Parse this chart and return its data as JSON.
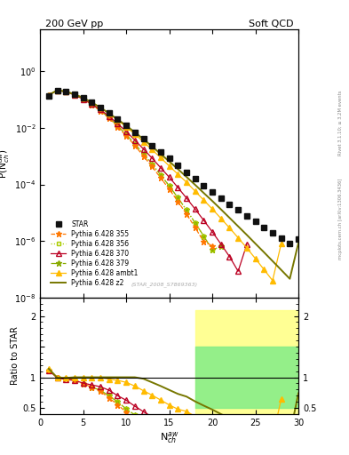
{
  "title_left": "200 GeV pp",
  "title_right": "Soft QCD",
  "ylabel_main": "P(N$^{aw}_{ch}$)",
  "ylabel_ratio": "Ratio to STAR",
  "xlabel": "N$^{aw}_{ch}$",
  "watermark": "(STAR_2008_S7869363)",
  "right_label_top": "Rivet 3.1.10; ≥ 3.2M events",
  "right_label_bot": "mcplots.cern.ch [arXiv:1306.3436]",
  "ylim_main": [
    1e-08,
    30
  ],
  "ylim_ratio": [
    0.4,
    2.3
  ],
  "xmin": 0,
  "xmax": 30,
  "star_x": [
    1,
    2,
    3,
    4,
    5,
    6,
    7,
    8,
    9,
    10,
    11,
    12,
    13,
    14,
    15,
    16,
    17,
    18,
    19,
    20,
    21,
    22,
    23,
    24,
    25,
    26,
    27,
    28,
    29,
    30
  ],
  "star_y": [
    0.13,
    0.215,
    0.195,
    0.155,
    0.115,
    0.08,
    0.052,
    0.033,
    0.02,
    0.012,
    0.007,
    0.0041,
    0.0024,
    0.0014,
    0.00082,
    0.00048,
    0.00027,
    0.00016,
    9.3e-05,
    5.5e-05,
    3.3e-05,
    2e-05,
    1.25e-05,
    7.8e-06,
    4.9e-06,
    3.1e-06,
    1.95e-06,
    1.25e-06,
    8e-07,
    1.15e-06
  ],
  "py355_x": [
    1,
    2,
    3,
    4,
    5,
    6,
    7,
    8,
    9,
    10,
    11,
    12,
    13,
    14,
    15,
    16,
    17,
    18,
    19,
    20
  ],
  "py355_y": [
    0.145,
    0.215,
    0.192,
    0.148,
    0.103,
    0.067,
    0.04,
    0.022,
    0.011,
    0.0052,
    0.0024,
    0.001,
    0.00043,
    0.00017,
    6.8e-05,
    2.5e-05,
    9e-06,
    3e-06,
    9.5e-07,
    6.8e-07
  ],
  "py356_x": [
    1,
    2,
    3,
    4,
    5,
    6,
    7,
    8,
    9,
    10,
    11,
    12,
    13,
    14,
    15,
    16,
    17,
    18,
    19,
    20,
    21
  ],
  "py356_y": [
    0.145,
    0.215,
    0.192,
    0.148,
    0.103,
    0.067,
    0.041,
    0.023,
    0.012,
    0.0058,
    0.0027,
    0.0012,
    0.00052,
    0.00022,
    8.8e-05,
    3.4e-05,
    1.25e-05,
    4.4e-06,
    1.5e-06,
    4.8e-07,
    6.5e-07
  ],
  "py370_x": [
    1,
    2,
    3,
    4,
    5,
    6,
    7,
    8,
    9,
    10,
    11,
    12,
    13,
    14,
    15,
    16,
    17,
    18,
    19,
    20,
    21,
    22,
    23,
    24
  ],
  "py370_y": [
    0.145,
    0.212,
    0.188,
    0.147,
    0.104,
    0.07,
    0.044,
    0.026,
    0.014,
    0.0075,
    0.0037,
    0.0018,
    0.00085,
    0.00039,
    0.00018,
    7.8e-05,
    3.3e-05,
    1.35e-05,
    5.4e-06,
    2.1e-06,
    7.8e-07,
    2.8e-07,
    8.5e-08,
    7.5e-07
  ],
  "py379_x": [
    1,
    2,
    3,
    4,
    5,
    6,
    7,
    8,
    9,
    10,
    11,
    12,
    13,
    14,
    15,
    16,
    17,
    18,
    19,
    20,
    21
  ],
  "py379_y": [
    0.145,
    0.215,
    0.192,
    0.148,
    0.103,
    0.067,
    0.041,
    0.023,
    0.012,
    0.0058,
    0.0027,
    0.0012,
    0.00052,
    0.00022,
    8.8e-05,
    3.4e-05,
    1.25e-05,
    4.4e-06,
    1.5e-06,
    4.8e-07,
    6.5e-07
  ],
  "pyambt1_x": [
    1,
    2,
    3,
    4,
    5,
    6,
    7,
    8,
    9,
    10,
    11,
    12,
    13,
    14,
    15,
    16,
    17,
    18,
    19,
    20,
    21,
    22,
    23,
    24,
    25,
    26,
    27,
    28
  ],
  "pyambt1_y": [
    0.148,
    0.213,
    0.193,
    0.155,
    0.114,
    0.079,
    0.052,
    0.032,
    0.019,
    0.011,
    0.006,
    0.0032,
    0.0017,
    0.00088,
    0.00045,
    0.00023,
    0.00012,
    5.8e-05,
    2.8e-05,
    1.35e-05,
    6.3e-06,
    2.9e-06,
    1.3e-06,
    5.7e-07,
    2.4e-07,
    9.8e-08,
    4e-08,
    8e-07
  ],
  "pyz2_x": [
    1,
    2,
    3,
    4,
    5,
    6,
    7,
    8,
    9,
    10,
    11,
    12,
    13,
    14,
    15,
    16,
    17,
    18,
    19,
    20,
    21,
    22,
    23,
    24,
    25,
    26,
    27,
    28,
    29,
    30
  ],
  "pyz2_y": [
    0.148,
    0.213,
    0.193,
    0.155,
    0.115,
    0.08,
    0.052,
    0.033,
    0.02,
    0.012,
    0.007,
    0.004,
    0.0022,
    0.0012,
    0.00065,
    0.00035,
    0.000185,
    9.7e-05,
    5e-05,
    2.6e-05,
    1.32e-05,
    6.6e-06,
    3.3e-06,
    1.65e-06,
    8.1e-07,
    4e-07,
    1.95e-07,
    9.5e-08,
    4.6e-08,
    8.5e-07
  ],
  "colors": {
    "star": "#111111",
    "py355": "#ff7700",
    "py356": "#aacc00",
    "py370": "#bb0022",
    "py379": "#88aa00",
    "pyambt1": "#ffbb00",
    "pyz2": "#777700"
  },
  "band_x_start": 18,
  "band_x_end": 30,
  "band_green_lo": 0.5,
  "band_green_hi": 1.5,
  "band_yellow_lo": 0.4,
  "band_yellow_hi": 2.1
}
